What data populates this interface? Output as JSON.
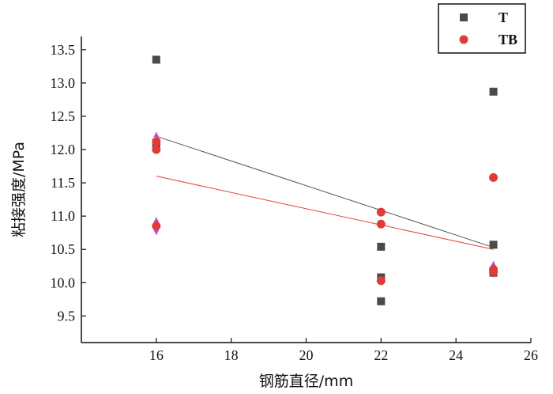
{
  "chart_data": {
    "type": "scatter",
    "title": "",
    "xlabel": "钢筋直径/mm",
    "ylabel": "粘接强度/MPa",
    "xlim": [
      14,
      26
    ],
    "ylim": [
      9.1,
      13.7
    ],
    "x_ticks": [
      16,
      18,
      20,
      22,
      24,
      26
    ],
    "x_tick_labels": [
      "16",
      "18",
      "20",
      "22",
      "24",
      "26"
    ],
    "y_ticks": [
      9.5,
      10.0,
      10.5,
      11.0,
      11.5,
      12.0,
      12.5,
      13.0,
      13.5
    ],
    "y_tick_labels": [
      "9.5",
      "10.0",
      "10.5",
      "11.0",
      "11.5",
      "12.0",
      "12.5",
      "13.0",
      "13.5"
    ],
    "grid": false,
    "legend_position": "top-right",
    "series": [
      {
        "name": "T",
        "marker": "square",
        "color": "#4a4a4a",
        "points": [
          {
            "x": 16,
            "y": 13.35
          },
          {
            "x": 16,
            "y": 12.1
          },
          {
            "x": 16,
            "y": 12.03
          },
          {
            "x": 22,
            "y": 10.54
          },
          {
            "x": 22,
            "y": 10.08
          },
          {
            "x": 22,
            "y": 9.72
          },
          {
            "x": 25,
            "y": 12.87
          },
          {
            "x": 25,
            "y": 10.57
          },
          {
            "x": 25,
            "y": 10.15
          }
        ],
        "trendline": {
          "x": [
            16,
            25
          ],
          "y": [
            12.2,
            10.53
          ],
          "color": "#555555"
        }
      },
      {
        "name": "TB",
        "marker": "circle",
        "color": "#e03a3a",
        "points": [
          {
            "x": 16,
            "y": 12.12,
            "err": 0.14
          },
          {
            "x": 16,
            "y": 12.0
          },
          {
            "x": 16,
            "y": 10.85,
            "err": 0.13
          },
          {
            "x": 22,
            "y": 11.06
          },
          {
            "x": 22,
            "y": 10.88
          },
          {
            "x": 22,
            "y": 10.03
          },
          {
            "x": 25,
            "y": 11.58
          },
          {
            "x": 25,
            "y": 10.2,
            "err": 0.12
          },
          {
            "x": 25,
            "y": 10.16
          }
        ],
        "trendline": {
          "x": [
            16,
            25
          ],
          "y": [
            11.6,
            10.5
          ],
          "color": "#e84040"
        },
        "errorbar_color": "#b050c8"
      }
    ]
  }
}
